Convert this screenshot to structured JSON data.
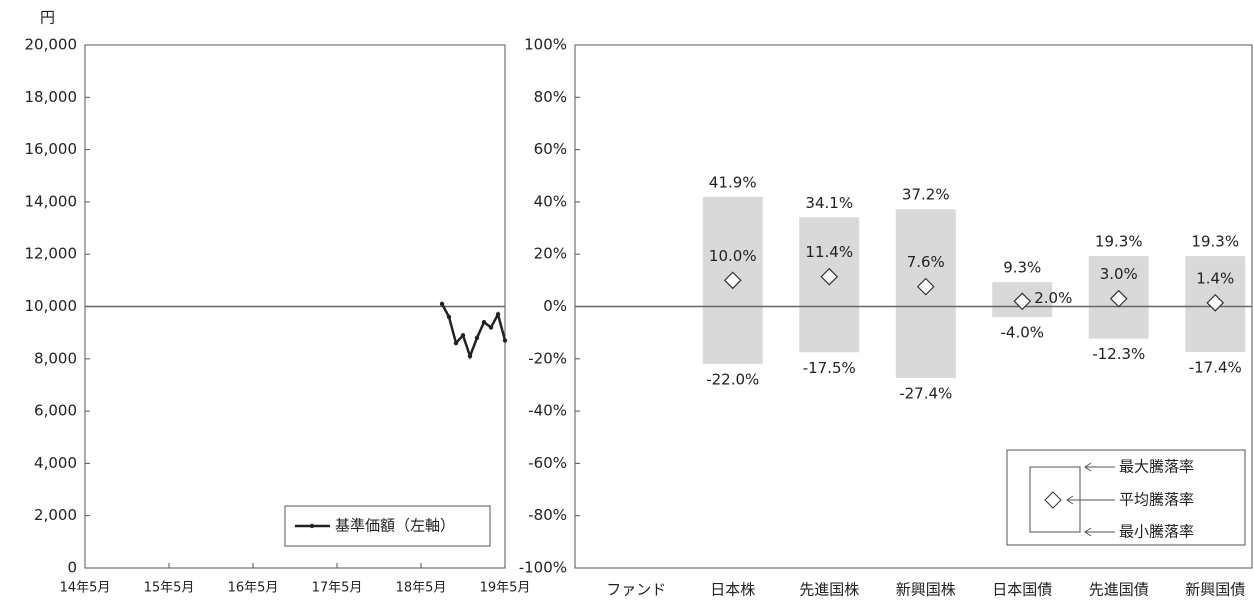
{
  "chart_data": [
    {
      "type": "line",
      "ylabel": "円",
      "x": [
        "18年8月",
        "18年9月",
        "18年10月",
        "18年11月",
        "18年12月",
        "19年1月",
        "19年2月",
        "19年3月",
        "19年4月",
        "19年5月"
      ],
      "xlim": [
        "14年5月",
        "19年5月"
      ],
      "xticks": [
        "14年5月",
        "15年5月",
        "16年5月",
        "17年5月",
        "18年5月",
        "19年5月"
      ],
      "series": [
        {
          "name": "基準価額（左軸）",
          "color": "#222222",
          "values": [
            10100,
            9600,
            8600,
            8900,
            8100,
            8800,
            9400,
            9200,
            9700,
            8700
          ]
        }
      ],
      "ylim": [
        0,
        20000
      ],
      "yticks": [
        0,
        {
          "value": 2000,
          "label": "2,000"
        },
        {
          "value": 4000,
          "label": "4,000"
        },
        {
          "value": 6000,
          "label": "6,000"
        },
        {
          "value": 8000,
          "label": "8,000"
        },
        {
          "value": 10000,
          "label": "10,000"
        },
        {
          "value": 12000,
          "label": "12,000"
        },
        {
          "value": 14000,
          "label": "14,000"
        },
        {
          "value": 16000,
          "label": "16,000"
        },
        {
          "value": 18000,
          "label": "18,000"
        },
        {
          "value": 20000,
          "label": "20,000"
        }
      ],
      "hline": 10000,
      "legend": "lower right"
    },
    {
      "type": "range",
      "categories": [
        "ファンド",
        "日本株",
        "先進国株",
        "新興国株",
        "日本国債",
        "先進国債",
        "新興国債"
      ],
      "series": [
        {
          "name": "最大騰落率",
          "color": "#d9d9d9",
          "values": [
            null,
            41.9,
            34.1,
            37.2,
            9.3,
            19.3,
            19.3
          ],
          "value_labels": [
            null,
            "41.9%",
            "34.1%",
            "37.2%",
            "9.3%",
            "19.3%",
            "19.3%"
          ]
        },
        {
          "name": "平均騰落率",
          "color": "#ffffff",
          "values": [
            null,
            10.0,
            11.4,
            7.6,
            2.0,
            3.0,
            1.4
          ],
          "value_labels": [
            null,
            "10.0%",
            "11.4%",
            "7.6%",
            "2.0%",
            "3.0%",
            "1.4%"
          ]
        },
        {
          "name": "最小騰落率",
          "color": "#d9d9d9",
          "values": [
            null,
            -22.0,
            -17.5,
            -27.4,
            -4.0,
            -12.3,
            -17.4
          ],
          "value_labels": [
            null,
            "-22.0%",
            "-17.5%",
            "-27.4%",
            "-4.0%",
            "-12.3%",
            "-17.4%"
          ]
        }
      ],
      "ylim": [
        -100,
        100
      ],
      "yticks": [
        {
          "value": -100,
          "label": "-100%"
        },
        {
          "value": -80,
          "label": "-80%"
        },
        {
          "value": -60,
          "label": "-60%"
        },
        {
          "value": -40,
          "label": "-40%"
        },
        {
          "value": -20,
          "label": "-20%"
        },
        {
          "value": 0,
          "label": "0%"
        },
        {
          "value": 20,
          "label": "20%"
        },
        {
          "value": 40,
          "label": "40%"
        },
        {
          "value": 60,
          "label": "60%"
        },
        {
          "value": 80,
          "label": "80%"
        },
        {
          "value": 100,
          "label": "100%"
        }
      ],
      "hline": 0,
      "legend": "lower right"
    }
  ]
}
